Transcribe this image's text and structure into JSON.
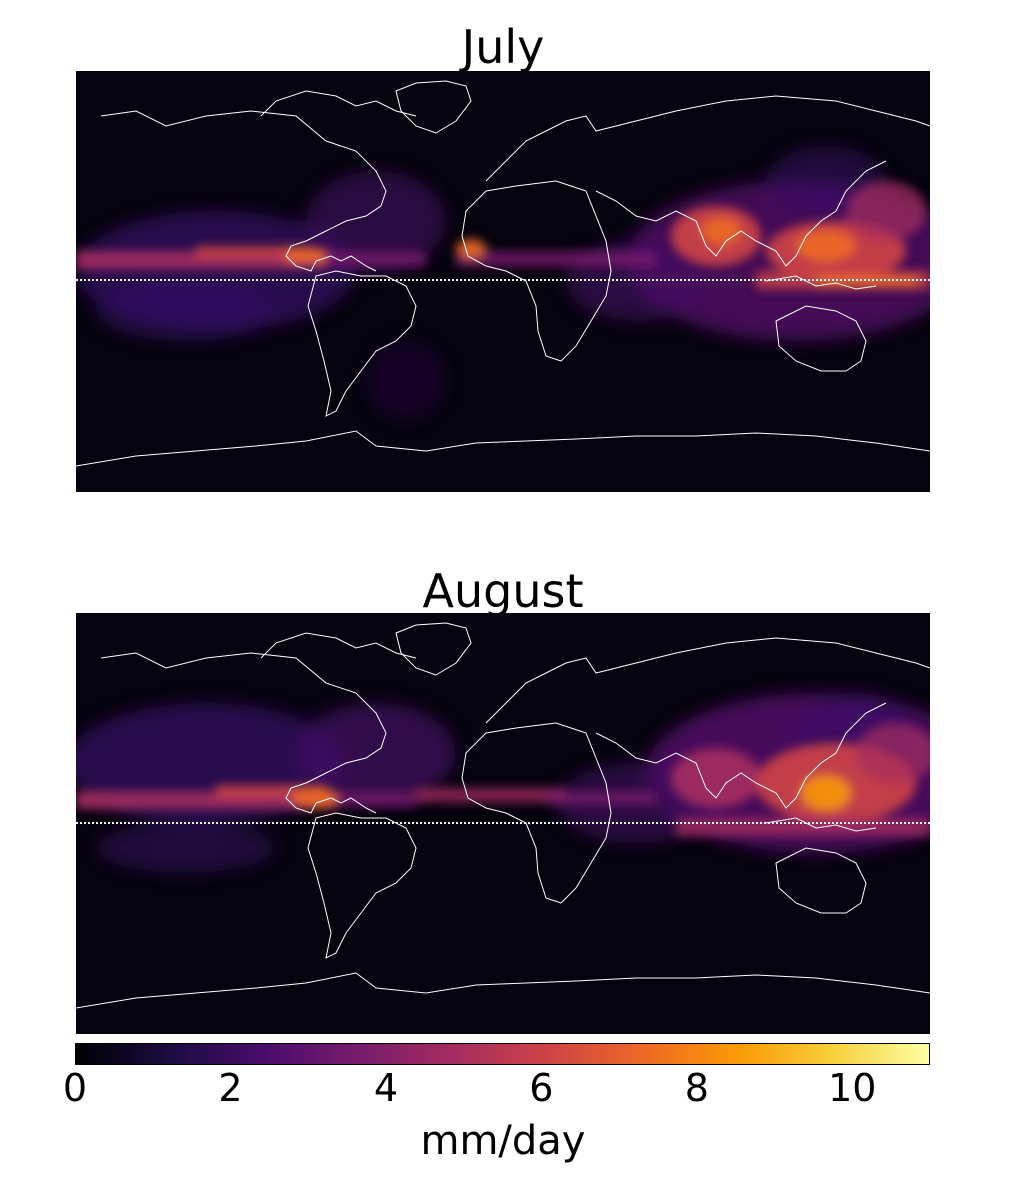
{
  "panels": [
    {
      "title": "July"
    },
    {
      "title": "August"
    }
  ],
  "colorbar": {
    "label": "mm/day",
    "range": [
      0,
      11
    ],
    "ticks": [
      "0",
      "2",
      "4",
      "6",
      "8",
      "10"
    ],
    "tick_values": [
      0,
      2,
      4,
      6,
      8,
      10
    ],
    "colormap": "inferno",
    "colors": [
      "#000004",
      "#1b0c41",
      "#4a0c6b",
      "#781c6d",
      "#a52c60",
      "#cf4446",
      "#ed6925",
      "#fb9b06",
      "#f7d13d",
      "#fcffa4"
    ]
  },
  "map": {
    "background_color": "#05030d",
    "coastline_color": "#ffffff",
    "equator_line": "dotted white"
  }
}
